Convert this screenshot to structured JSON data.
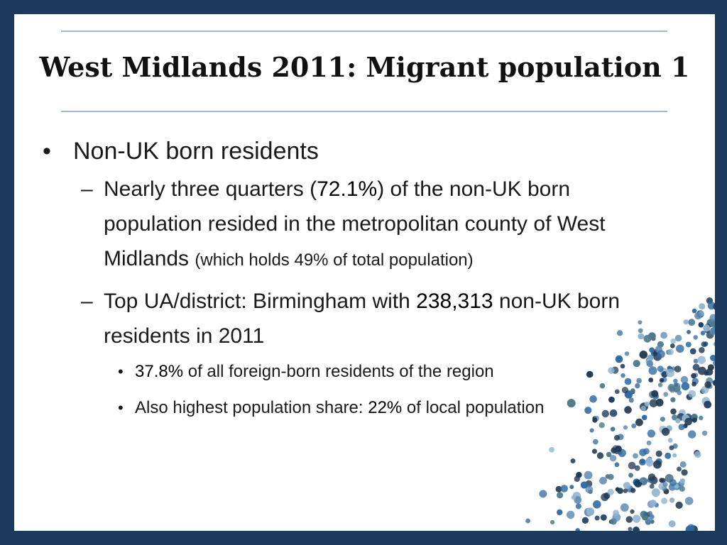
{
  "title": "West Midlands 2011: Migrant population 1",
  "bullet_main": "Non-UK born residents",
  "sub1": {
    "text_a": "Nearly three quarters (",
    "highlight": "72.1%",
    "text_b": ") of the non-UK born population resided in the metropolitan county of West Midlands ",
    "note": "(which holds 49% of total population)"
  },
  "sub2": {
    "text_a": "Top UA/district: Birmingham with ",
    "highlight": "238,313",
    "text_b": " non-UK born residents in 2011"
  },
  "sub2_items": [
    {
      "highlight": "37.8%",
      "text": " of all foreign-born residents of the region"
    },
    {
      "text_a": "Also highest population share: ",
      "highlight": "22%",
      "text_b": " of local population"
    }
  ],
  "colors": {
    "frame": "#1b3a5e",
    "rule": "#9db8d4",
    "dots": [
      "#1b3a5e",
      "#2f6aa3",
      "#5b88b2",
      "#8fb3cf",
      "#4e7a8a",
      "#233b52"
    ]
  }
}
